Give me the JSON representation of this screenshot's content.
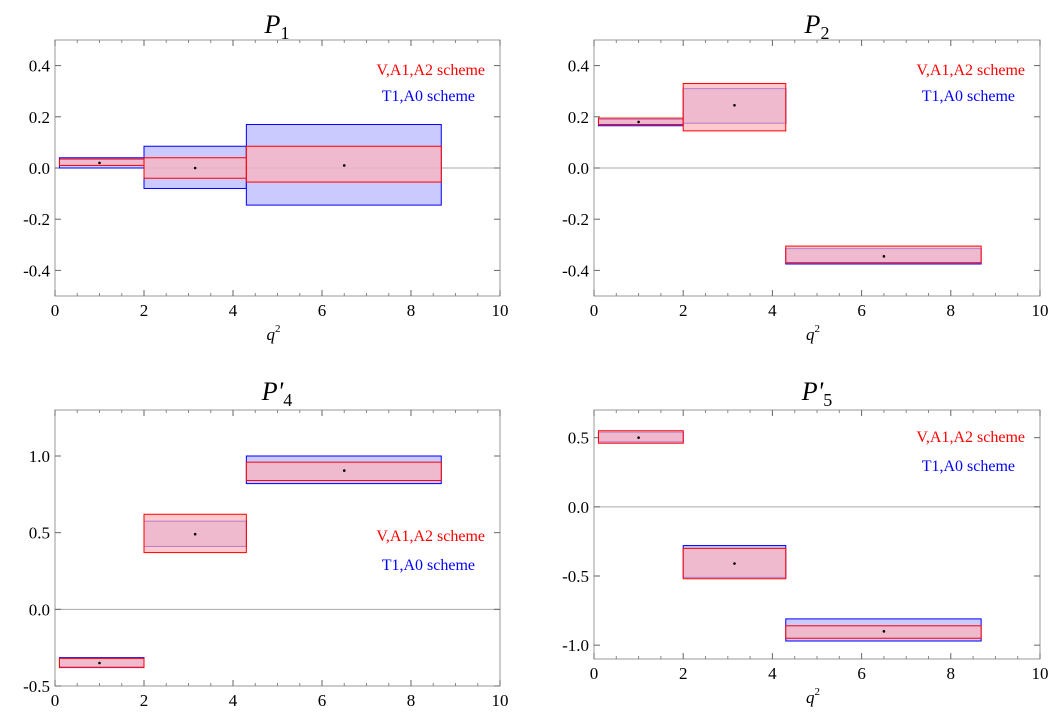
{
  "colors": {
    "scheme_a": "#ff0000",
    "scheme_a_fill": "#ffb3b8",
    "scheme_b": "#0000ff",
    "scheme_b_fill": "#b3b3ff",
    "zero_line": "#aaaaaa",
    "frame": "#999999"
  },
  "chart_data": [
    {
      "type": "bar",
      "title_main": "P",
      "title_sub": "1",
      "xlabel_main": "q",
      "xlabel_sup": "2",
      "xlim": [
        0,
        10
      ],
      "ylim": [
        -0.5,
        0.5
      ],
      "xticks": [
        0,
        2,
        4,
        6,
        8,
        10
      ],
      "xtick_labels": [
        "0",
        "2",
        "4",
        "6",
        "8",
        "10"
      ],
      "yticks": [
        -0.4,
        -0.2,
        0.0,
        0.2,
        0.4
      ],
      "ytick_labels": [
        "-0.4",
        "-0.2",
        "0.0",
        "0.2",
        "0.4"
      ],
      "legend": {
        "position": "top-right",
        "labels": [
          "V,A1,A2 scheme",
          "T1,A0 scheme"
        ]
      },
      "series": [
        {
          "name": "V,A1,A2 scheme",
          "bins": [
            {
              "x": [
                0.1,
                2
              ],
              "y": [
                0.01,
                0.035
              ]
            },
            {
              "x": [
                2,
                4.3
              ],
              "y": [
                -0.04,
                0.04
              ]
            },
            {
              "x": [
                4.3,
                8.68
              ],
              "y": [
                -0.055,
                0.085
              ]
            }
          ]
        },
        {
          "name": "T1,A0 scheme",
          "bins": [
            {
              "x": [
                0.1,
                2
              ],
              "y": [
                0.0,
                0.04
              ]
            },
            {
              "x": [
                2,
                4.3
              ],
              "y": [
                -0.08,
                0.085
              ]
            },
            {
              "x": [
                4.3,
                8.68
              ],
              "y": [
                -0.145,
                0.17
              ]
            }
          ]
        }
      ],
      "central_values": [
        {
          "x": 1.0,
          "y": 0.02
        },
        {
          "x": 3.15,
          "y": 0.0
        },
        {
          "x": 6.5,
          "y": 0.01
        }
      ]
    },
    {
      "type": "bar",
      "title_main": "P",
      "title_sub": "2",
      "xlabel_main": "q",
      "xlabel_sup": "2",
      "xlim": [
        0,
        10
      ],
      "ylim": [
        -0.5,
        0.5
      ],
      "xticks": [
        0,
        2,
        4,
        6,
        8,
        10
      ],
      "xtick_labels": [
        "0",
        "2",
        "4",
        "6",
        "8",
        "10"
      ],
      "yticks": [
        -0.4,
        -0.2,
        0.0,
        0.2,
        0.4
      ],
      "ytick_labels": [
        "-0.4",
        "-0.2",
        "0.0",
        "0.2",
        "0.4"
      ],
      "legend": {
        "position": "top-right",
        "labels": [
          "V,A1,A2 scheme",
          "T1,A0 scheme"
        ]
      },
      "series": [
        {
          "name": "V,A1,A2 scheme",
          "bins": [
            {
              "x": [
                0.1,
                2
              ],
              "y": [
                0.17,
                0.195
              ]
            },
            {
              "x": [
                2,
                4.3
              ],
              "y": [
                0.145,
                0.33
              ]
            },
            {
              "x": [
                4.3,
                8.68
              ],
              "y": [
                -0.37,
                -0.305
              ]
            }
          ]
        },
        {
          "name": "T1,A0 scheme",
          "bins": [
            {
              "x": [
                0.1,
                2
              ],
              "y": [
                0.165,
                0.19
              ]
            },
            {
              "x": [
                2,
                4.3
              ],
              "y": [
                0.175,
                0.31
              ]
            },
            {
              "x": [
                4.3,
                8.68
              ],
              "y": [
                -0.375,
                -0.315
              ]
            }
          ]
        }
      ],
      "central_values": [
        {
          "x": 1.0,
          "y": 0.18
        },
        {
          "x": 3.15,
          "y": 0.245
        },
        {
          "x": 6.5,
          "y": -0.345
        }
      ]
    },
    {
      "type": "bar",
      "title_main": "P'",
      "title_sub": "4",
      "xlabel_main": "q",
      "xlabel_sup": "2",
      "xlim": [
        0,
        10
      ],
      "ylim": [
        -0.5,
        1.3
      ],
      "xticks": [
        0,
        2,
        4,
        6,
        8,
        10
      ],
      "xtick_labels": [
        "0",
        "2",
        "4",
        "6",
        "8",
        "10"
      ],
      "yticks": [
        -0.5,
        0.0,
        0.5,
        1.0
      ],
      "ytick_labels": [
        "-0.5",
        "0.0",
        "0.5",
        "1.0"
      ],
      "legend": {
        "position": "right",
        "labels": [
          "V,A1,A2 scheme",
          "T1,A0 scheme"
        ]
      },
      "series": [
        {
          "name": "V,A1,A2 scheme",
          "bins": [
            {
              "x": [
                0.1,
                2
              ],
              "y": [
                -0.38,
                -0.32
              ]
            },
            {
              "x": [
                2,
                4.3
              ],
              "y": [
                0.37,
                0.62
              ]
            },
            {
              "x": [
                4.3,
                8.68
              ],
              "y": [
                0.84,
                0.96
              ]
            }
          ]
        },
        {
          "name": "T1,A0 scheme",
          "bins": [
            {
              "x": [
                0.1,
                2
              ],
              "y": [
                -0.375,
                -0.315
              ]
            },
            {
              "x": [
                2,
                4.3
              ],
              "y": [
                0.41,
                0.575
              ]
            },
            {
              "x": [
                4.3,
                8.68
              ],
              "y": [
                0.82,
                1.0
              ]
            }
          ]
        }
      ],
      "central_values": [
        {
          "x": 1.0,
          "y": -0.35
        },
        {
          "x": 3.15,
          "y": 0.49
        },
        {
          "x": 6.5,
          "y": 0.905
        }
      ]
    },
    {
      "type": "bar",
      "title_main": "P'",
      "title_sub": "5",
      "xlabel_main": "q",
      "xlabel_sup": "2",
      "xlim": [
        0,
        10
      ],
      "ylim": [
        -1.1,
        0.7
      ],
      "xticks": [
        0,
        2,
        4,
        6,
        8,
        10
      ],
      "xtick_labels": [
        "0",
        "2",
        "4",
        "6",
        "8",
        "10"
      ],
      "yticks": [
        -1.0,
        -0.5,
        0.0,
        0.5
      ],
      "ytick_labels": [
        "-1.0",
        "-0.5",
        "0.0",
        "0.5"
      ],
      "legend": {
        "position": "top-right",
        "labels": [
          "V,A1,A2 scheme",
          "T1,A0 scheme"
        ]
      },
      "series": [
        {
          "name": "V,A1,A2 scheme",
          "bins": [
            {
              "x": [
                0.1,
                2
              ],
              "y": [
                0.46,
                0.55
              ]
            },
            {
              "x": [
                2,
                4.3
              ],
              "y": [
                -0.52,
                -0.3
              ]
            },
            {
              "x": [
                4.3,
                8.68
              ],
              "y": [
                -0.95,
                -0.86
              ]
            }
          ]
        },
        {
          "name": "T1,A0 scheme",
          "bins": [
            {
              "x": [
                0.1,
                2
              ],
              "y": [
                0.47,
                0.54
              ]
            },
            {
              "x": [
                2,
                4.3
              ],
              "y": [
                -0.51,
                -0.28
              ]
            },
            {
              "x": [
                4.3,
                8.68
              ],
              "y": [
                -0.97,
                -0.81
              ]
            }
          ]
        }
      ],
      "central_values": [
        {
          "x": 1.0,
          "y": 0.5
        },
        {
          "x": 3.15,
          "y": -0.41
        },
        {
          "x": 6.5,
          "y": -0.9
        }
      ]
    }
  ]
}
